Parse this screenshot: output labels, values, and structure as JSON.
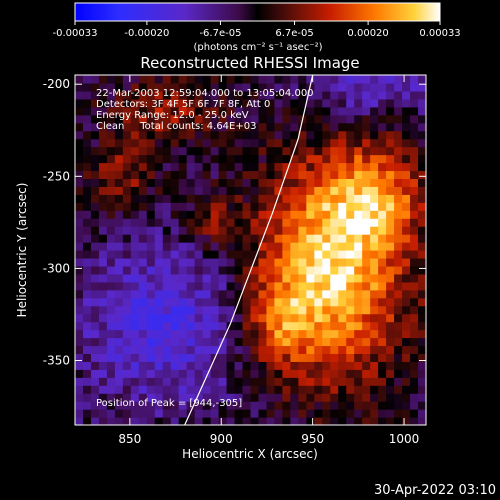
{
  "colorbar": {
    "ticks": [
      {
        "value": -0.00033,
        "label": "-0.00033"
      },
      {
        "value": -0.0002,
        "label": "-0.00020"
      },
      {
        "value": -6.7e-05,
        "label": "-6.7e-05"
      },
      {
        "value": 6.7e-05,
        "label": "6.7e-05"
      },
      {
        "value": 0.0002,
        "label": "0.00020"
      },
      {
        "value": 0.00033,
        "label": "0.00033"
      }
    ],
    "range": [
      -0.00033,
      0.00033
    ],
    "unit_label": "(photons cm⁻² s⁻¹ asec⁻²)"
  },
  "chart_data": {
    "type": "heatmap",
    "title": "Reconstructed RHESSI Image",
    "xlabel": "Heliocentric X (arcsec)",
    "ylabel": "Heliocentric Y (arcsec)",
    "xlim": [
      820,
      1012
    ],
    "ylim": [
      -385,
      -195
    ],
    "xticks": [
      850,
      900,
      950,
      1000
    ],
    "yticks": [
      -200,
      -250,
      -300,
      -350
    ],
    "limb_curve": [
      [
        880,
        -385
      ],
      [
        905,
        -330
      ],
      [
        928,
        -270
      ],
      [
        942,
        -230
      ],
      [
        950,
        -195
      ]
    ],
    "peak_position": [
      944,
      -305
    ],
    "sources": [
      {
        "x": 960,
        "y": -300,
        "sx": 28,
        "sy": 40,
        "amp": 1.0
      },
      {
        "x": 985,
        "y": -260,
        "sx": 18,
        "sy": 18,
        "amp": 0.55
      },
      {
        "x": 930,
        "y": -330,
        "sx": 14,
        "sy": 16,
        "amp": 0.45
      },
      {
        "x": 870,
        "y": -215,
        "sx": 20,
        "sy": 12,
        "amp": 0.35
      },
      {
        "x": 845,
        "y": -250,
        "sx": 12,
        "sy": 14,
        "amp": 0.35
      },
      {
        "x": 895,
        "y": -275,
        "sx": 10,
        "sy": 10,
        "amp": 0.3
      },
      {
        "x": 870,
        "y": -330,
        "sx": 35,
        "sy": 30,
        "amp": -0.45
      },
      {
        "x": 980,
        "y": -200,
        "sx": 25,
        "sy": 12,
        "amp": -0.35
      }
    ]
  },
  "annotations": {
    "line1": "22-Mar-2003 12:59:04.000 to 13:05:04.000",
    "line2": "Detectors: 3F 4F 5F 6F 7F 8F, Att 0",
    "line3": "Energy Range: 12.0 - 25.0 keV",
    "line4": "Clean     Total counts: 4.64E+03",
    "peak": "Position of Peak = [944,-305]"
  },
  "timestamp": "30-Apr-2022 03:10"
}
